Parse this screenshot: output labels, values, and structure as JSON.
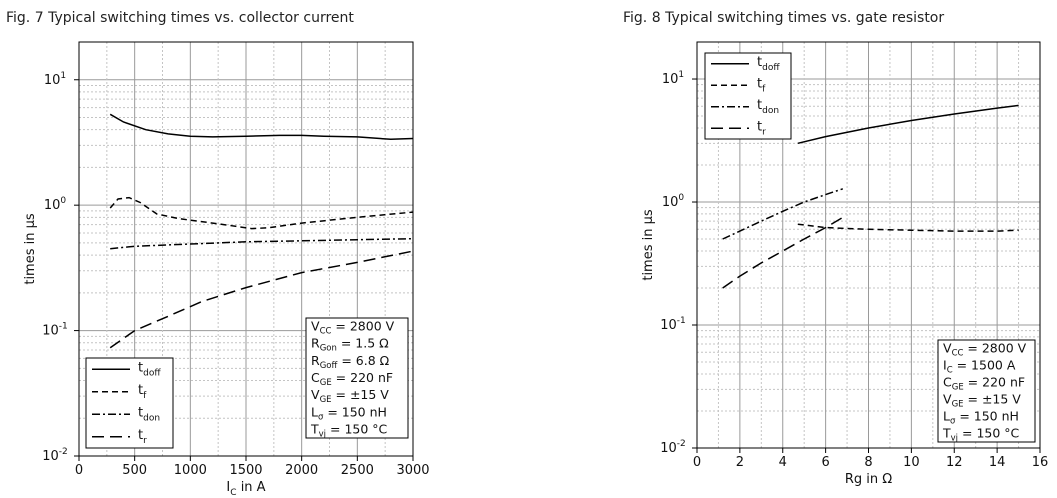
{
  "figures": [
    {
      "title": "Fig. 7  Typical switching times vs. collector current"
    },
    {
      "title": "Fig. 8  Typical switching times vs. gate resistor"
    }
  ],
  "chart_data": [
    {
      "type": "line",
      "title": "Fig. 7  Typical switching times vs. collector current",
      "xlabel": {
        "main": "I",
        "sub": "C",
        "rest": " in A"
      },
      "ylabel": "times in µs",
      "y_scale": "log",
      "xlim": [
        0,
        3000
      ],
      "ylim": [
        0.01,
        20
      ],
      "x_ticks": [
        0,
        500,
        1000,
        1500,
        2000,
        2500,
        3000
      ],
      "x_tick_labels": [
        "0",
        "500",
        "1000",
        "1500",
        "2000",
        "2500",
        "3000"
      ],
      "y_ticks": [
        0.01,
        0.1,
        1,
        10
      ],
      "y_tick_labels": [
        {
          "base": "10",
          "exp": "-2"
        },
        {
          "base": "10",
          "exp": "-1"
        },
        {
          "base": "10",
          "exp": "0"
        },
        {
          "base": "10",
          "exp": "1"
        }
      ],
      "grid": true,
      "legend_position": "bottom-left",
      "series": [
        {
          "name": "t",
          "name_sub": "doff",
          "dash": "",
          "points": [
            [
              280,
              5.3
            ],
            [
              400,
              4.6
            ],
            [
              600,
              4.0
            ],
            [
              800,
              3.7
            ],
            [
              1000,
              3.55
            ],
            [
              1200,
              3.5
            ],
            [
              1500,
              3.55
            ],
            [
              1800,
              3.6
            ],
            [
              2000,
              3.6
            ],
            [
              2200,
              3.55
            ],
            [
              2500,
              3.5
            ],
            [
              2800,
              3.35
            ],
            [
              3000,
              3.4
            ]
          ]
        },
        {
          "name": "t",
          "name_sub": "f",
          "dash": "6,4",
          "points": [
            [
              280,
              0.95
            ],
            [
              350,
              1.12
            ],
            [
              450,
              1.15
            ],
            [
              550,
              1.05
            ],
            [
              700,
              0.85
            ],
            [
              900,
              0.78
            ],
            [
              1100,
              0.74
            ],
            [
              1300,
              0.7
            ],
            [
              1550,
              0.65
            ],
            [
              1700,
              0.66
            ],
            [
              2000,
              0.72
            ],
            [
              2500,
              0.8
            ],
            [
              3000,
              0.88
            ]
          ]
        },
        {
          "name": "t",
          "name_sub": "don",
          "dash": "8,3,2,3",
          "points": [
            [
              280,
              0.45
            ],
            [
              500,
              0.47
            ],
            [
              1000,
              0.49
            ],
            [
              1500,
              0.51
            ],
            [
              2000,
              0.52
            ],
            [
              2500,
              0.53
            ],
            [
              3000,
              0.54
            ]
          ]
        },
        {
          "name": "t",
          "name_sub": "r",
          "dash": "12,6",
          "points": [
            [
              280,
              0.073
            ],
            [
              500,
              0.1
            ],
            [
              800,
              0.13
            ],
            [
              1100,
              0.17
            ],
            [
              1500,
              0.22
            ],
            [
              2000,
              0.29
            ],
            [
              2500,
              0.35
            ],
            [
              3000,
              0.43
            ]
          ]
        }
      ],
      "conditions": [
        {
          "m": "V",
          "s": "CC",
          "r": " = 2800 V"
        },
        {
          "m": "R",
          "s": "Gon",
          "r": " = 1.5 Ω"
        },
        {
          "m": "R",
          "s": "Goff",
          "r": " = 6.8 Ω"
        },
        {
          "m": "C",
          "s": "GE",
          "r": " = 220 nF"
        },
        {
          "m": "V",
          "s": "GE",
          "r": " = ±15 V"
        },
        {
          "m": "L",
          "s": "σ",
          "r": " = 150 nH"
        },
        {
          "m": "T",
          "s": "vj",
          "r": " = 150 °C"
        }
      ]
    },
    {
      "type": "line",
      "title": "Fig. 8  Typical switching times vs. gate resistor",
      "xlabel": {
        "main": "Rg in Ω",
        "sub": "",
        "rest": ""
      },
      "ylabel": "times in µs",
      "y_scale": "log",
      "xlim": [
        0,
        16
      ],
      "ylim": [
        0.01,
        20
      ],
      "x_ticks": [
        0,
        2,
        4,
        6,
        8,
        10,
        12,
        14,
        16
      ],
      "x_tick_labels": [
        "0",
        "2",
        "4",
        "6",
        "8",
        "10",
        "12",
        "14",
        "16"
      ],
      "y_ticks": [
        0.01,
        0.1,
        1,
        10
      ],
      "y_tick_labels": [
        {
          "base": "10",
          "exp": "-2"
        },
        {
          "base": "10",
          "exp": "-1"
        },
        {
          "base": "10",
          "exp": "0"
        },
        {
          "base": "10",
          "exp": "1"
        }
      ],
      "grid": true,
      "legend_position": "top-left",
      "series": [
        {
          "name": "t",
          "name_sub": "doff",
          "dash": "",
          "points": [
            [
              4.7,
              3.0
            ],
            [
              6,
              3.4
            ],
            [
              8,
              4.0
            ],
            [
              10,
              4.6
            ],
            [
              12,
              5.2
            ],
            [
              14,
              5.8
            ],
            [
              15,
              6.1
            ]
          ]
        },
        {
          "name": "t",
          "name_sub": "f",
          "dash": "6,4",
          "points": [
            [
              4.7,
              0.66
            ],
            [
              6,
              0.62
            ],
            [
              8,
              0.6
            ],
            [
              10,
              0.59
            ],
            [
              12,
              0.58
            ],
            [
              14,
              0.58
            ],
            [
              15,
              0.59
            ]
          ]
        },
        {
          "name": "t",
          "name_sub": "don",
          "dash": "8,3,2,3",
          "points": [
            [
              1.2,
              0.5
            ],
            [
              2,
              0.58
            ],
            [
              3,
              0.7
            ],
            [
              4,
              0.84
            ],
            [
              5,
              1.0
            ],
            [
              6,
              1.15
            ],
            [
              6.8,
              1.28
            ]
          ]
        },
        {
          "name": "t",
          "name_sub": "r",
          "dash": "12,6",
          "points": [
            [
              1.2,
              0.2
            ],
            [
              2,
              0.25
            ],
            [
              3,
              0.32
            ],
            [
              4,
              0.4
            ],
            [
              5,
              0.5
            ],
            [
              6,
              0.62
            ],
            [
              6.8,
              0.75
            ]
          ]
        }
      ],
      "conditions": [
        {
          "m": "V",
          "s": "CC",
          "r": " = 2800 V"
        },
        {
          "m": "I",
          "s": "C",
          "r": " = 1500 A"
        },
        {
          "m": "C",
          "s": "GE",
          "r": " = 220 nF"
        },
        {
          "m": "V",
          "s": "GE",
          "r": " = ±15 V"
        },
        {
          "m": "L",
          "s": "σ",
          "r": " = 150 nH"
        },
        {
          "m": "T",
          "s": "vj",
          "r": " = 150 °C"
        }
      ]
    }
  ]
}
